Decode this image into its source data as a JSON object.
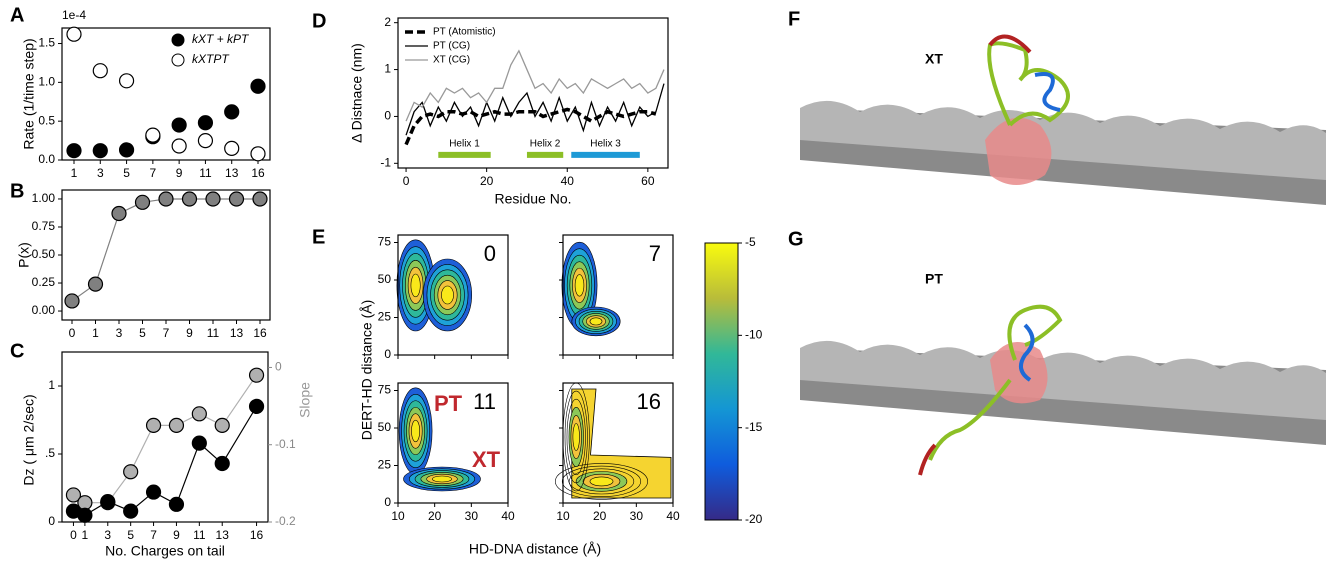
{
  "chart_data": [
    {
      "type": "line",
      "panel": "A",
      "ylabel": "Rate (1/time step)",
      "y_offset_label": "1e-4",
      "categories": [
        "1",
        "3",
        "5",
        "7",
        "9",
        "11",
        "13",
        "16"
      ],
      "ylim": [
        0,
        1.7
      ],
      "yticks": [
        {
          "value": 0,
          "label": "0.0"
        },
        0.5,
        {
          "value": 1,
          "label": "1.0"
        },
        1.5
      ],
      "series": [
        {
          "name": "kXT + kPT",
          "color": "#000000",
          "marker": "filled",
          "values": [
            0.12,
            0.12,
            0.13,
            0.3,
            0.45,
            0.48,
            0.62,
            0.95
          ]
        },
        {
          "name": "kXTPT",
          "color": "#000000",
          "marker": "open",
          "values": [
            1.62,
            1.15,
            1.02,
            0.32,
            0.18,
            0.25,
            0.15,
            0.08
          ]
        }
      ]
    },
    {
      "type": "line",
      "panel": "B",
      "ylabel": "P(x)",
      "categories": [
        "0",
        "1",
        "3",
        "5",
        "7",
        "9",
        "11",
        "13",
        "16"
      ],
      "ylim": [
        -0.08,
        1.08
      ],
      "yticks": [
        {
          "value": 0,
          "label": "0.00"
        },
        0.25,
        {
          "value": 0.5,
          "label": "0.50"
        },
        0.75,
        {
          "value": 1,
          "label": "1.00"
        }
      ],
      "connect": true,
      "series": [
        {
          "color": "#808080",
          "marker": "filled",
          "values": [
            0.09,
            0.24,
            0.87,
            0.97,
            1,
            1,
            1,
            1,
            1
          ]
        }
      ]
    },
    {
      "type": "line",
      "panel": "C",
      "xlabel": "No. Charges on tail",
      "ylabel": "Dz ( μm 2/sec)",
      "y2label": "Slope",
      "x": [
        0,
        1,
        3,
        5,
        7,
        9,
        11,
        13,
        16
      ],
      "xlim": [
        -1,
        17
      ],
      "xticks": [
        0,
        1,
        3,
        5,
        7,
        9,
        11,
        13,
        16
      ],
      "ylim": [
        0,
        1.25
      ],
      "yticks": [
        0,
        {
          "value": 0.5,
          "label": ".5"
        },
        1
      ],
      "y2lim": [
        -0.2,
        0.02
      ],
      "y2ticks": [
        0,
        -0.1,
        -0.2
      ],
      "connect": true,
      "series": [
        {
          "color": "#b0b0b0",
          "axis": "y2",
          "marker": "filled",
          "values": [
            -0.165,
            -0.175,
            -0.175,
            -0.135,
            -0.075,
            -0.075,
            -0.06,
            -0.075,
            -0.01
          ]
        },
        {
          "color": "#000000",
          "marker": "filled",
          "values": [
            0.08,
            0.05,
            0.15,
            0.08,
            0.22,
            0.13,
            0.58,
            0.43,
            0.85
          ]
        }
      ]
    },
    {
      "type": "line",
      "panel": "D",
      "xlabel": "Residue No.",
      "ylabel": "Δ Distnace (nm)",
      "x": [
        0,
        2,
        4,
        6,
        8,
        10,
        12,
        14,
        16,
        18,
        20,
        22,
        24,
        26,
        28,
        30,
        32,
        34,
        36,
        38,
        40,
        42,
        44,
        46,
        48,
        50,
        52,
        54,
        56,
        58,
        60,
        62,
        64
      ],
      "xlim": [
        -2,
        65
      ],
      "xticks": [
        0,
        20,
        40,
        60
      ],
      "ylim": [
        -1.1,
        2.1
      ],
      "yticks": [
        -1,
        0,
        1,
        2
      ],
      "series": [
        {
          "name": "PT (Atomistic)",
          "color": "#000000",
          "width": 3.5,
          "dash": true,
          "values": [
            -0.6,
            -0.2,
            0,
            0.05,
            0,
            0.1,
            0.1,
            0.05,
            0.1,
            0,
            0.05,
            0.1,
            0.05,
            0.05,
            0.1,
            0.1,
            0.1,
            0,
            0.05,
            0.1,
            0.15,
            0.1,
            0,
            -0.1,
            0,
            0.1,
            0.05,
            0,
            0.05,
            0.1,
            0.1,
            0.05,
            null
          ]
        },
        {
          "name": "PT (CG)",
          "color": "#000000",
          "width": 1.3,
          "values": [
            -0.4,
            0.1,
            0.3,
            -0.2,
            0.2,
            -0.1,
            0.3,
            0,
            0.2,
            -0.2,
            0.3,
            -0.1,
            0.4,
            0,
            0.3,
            0.5,
            0,
            0.3,
            -0.1,
            0.4,
            -0.1,
            0.2,
            -0.3,
            0.3,
            -0.2,
            0.2,
            -0.1,
            0.3,
            -0.2,
            0.2,
            0,
            0.1,
            0.7
          ]
        },
        {
          "name": "XT (CG)",
          "color": "#999999",
          "width": 1.3,
          "values": [
            -0.1,
            0.3,
            0.2,
            0.5,
            0.3,
            0.6,
            0.5,
            0.6,
            0.4,
            0.5,
            0.3,
            0.6,
            0.6,
            1.1,
            1.4,
            1,
            0.6,
            0.7,
            0.5,
            0.8,
            0.6,
            0.7,
            0.5,
            0.8,
            0.7,
            0.6,
            0.7,
            0.8,
            0.6,
            0.7,
            0.5,
            0.6,
            1
          ]
        }
      ],
      "helices": [
        {
          "label": "Helix 1",
          "start": 8,
          "end": 21,
          "color": "#8cbf26"
        },
        {
          "label": "Helix 2",
          "start": 30,
          "end": 39,
          "color": "#8cbf26"
        },
        {
          "label": "Helix 3",
          "start": 41,
          "end": 58,
          "color": "#1e9ad6"
        }
      ]
    },
    {
      "type": "contour",
      "panel": "E",
      "xlabel": "HD-DNA distance (Å)",
      "ylabel": "DERT-HD distance (Å)",
      "xlim": [
        10,
        40
      ],
      "xticks": [
        10,
        20,
        30,
        40
      ],
      "ylim": [
        0,
        80
      ],
      "yticks": [
        0,
        25,
        50,
        75
      ],
      "clim": [
        -20,
        -5
      ],
      "cticks": [
        -5,
        -10,
        -15,
        -20
      ],
      "subplots": [
        {
          "label": "0"
        },
        {
          "label": "7"
        },
        {
          "label": "11",
          "annotations": [
            "PT",
            "XT"
          ]
        },
        {
          "label": "16"
        }
      ]
    }
  ],
  "images": [
    {
      "panel": "F",
      "label": "XT"
    },
    {
      "panel": "G",
      "label": "PT"
    }
  ]
}
